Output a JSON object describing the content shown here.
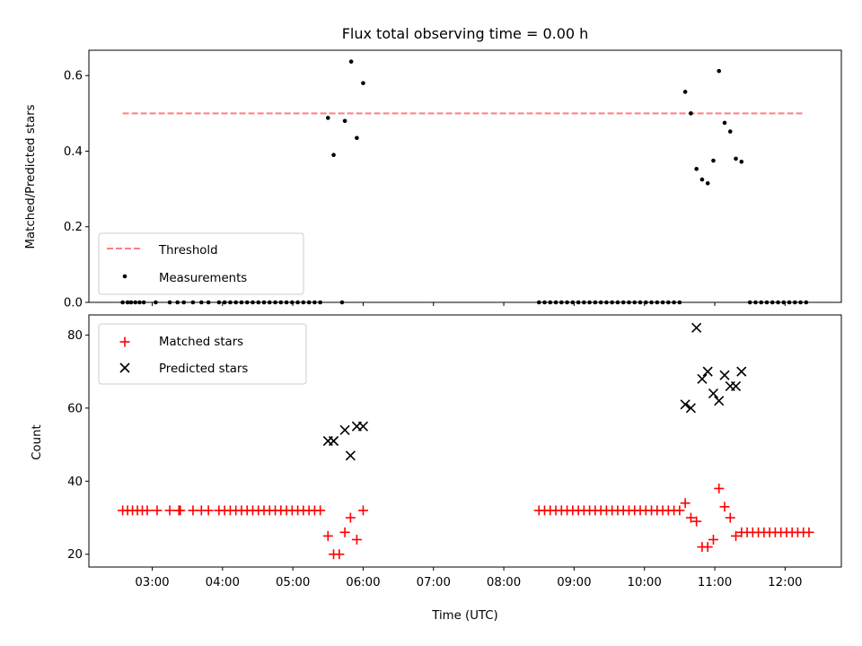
{
  "chart_data": [
    {
      "type": "scatter",
      "title": "Flux total observing time = 0.00 h",
      "xlabel": "",
      "ylabel": "Matched/Predicted stars",
      "ylim": [
        0,
        0.667
      ],
      "yticks": [
        0.0,
        0.2,
        0.4,
        0.6
      ],
      "ytick_labels": [
        "0.0",
        "0.2",
        "0.4",
        "0.6"
      ],
      "xlim_hours": [
        2.1,
        12.8
      ],
      "xtick_hours": [
        3,
        4,
        5,
        6,
        7,
        8,
        9,
        10,
        11,
        12
      ],
      "show_xtick_labels": false,
      "legend_position": "lower-left",
      "colors": {
        "threshold": "#ff7f7f",
        "measurements": "#000000"
      },
      "threshold": {
        "name": "Threshold",
        "value": 0.5,
        "x_start": 2.58,
        "x_end": 12.25
      },
      "series": [
        {
          "name": "Measurements",
          "points": [
            [
              2.58,
              0
            ],
            [
              2.65,
              0
            ],
            [
              2.7,
              0
            ],
            [
              2.76,
              0
            ],
            [
              2.82,
              0
            ],
            [
              2.88,
              0
            ],
            [
              3.05,
              0
            ],
            [
              3.25,
              0
            ],
            [
              3.36,
              0
            ],
            [
              3.45,
              0
            ],
            [
              3.58,
              0
            ],
            [
              3.7,
              0
            ],
            [
              3.8,
              0
            ],
            [
              3.95,
              0
            ],
            [
              4.03,
              0
            ],
            [
              4.11,
              0
            ],
            [
              4.19,
              0
            ],
            [
              4.27,
              0
            ],
            [
              4.35,
              0
            ],
            [
              4.43,
              0
            ],
            [
              4.51,
              0
            ],
            [
              4.59,
              0
            ],
            [
              4.67,
              0
            ],
            [
              4.75,
              0
            ],
            [
              4.83,
              0
            ],
            [
              4.91,
              0
            ],
            [
              4.99,
              0
            ],
            [
              5.07,
              0
            ],
            [
              5.15,
              0
            ],
            [
              5.23,
              0
            ],
            [
              5.31,
              0
            ],
            [
              5.39,
              0
            ],
            [
              5.7,
              0
            ],
            [
              5.5,
              0.488
            ],
            [
              5.58,
              0.39
            ],
            [
              5.74,
              0.48
            ],
            [
              5.83,
              0.637
            ],
            [
              5.91,
              0.435
            ],
            [
              6.0,
              0.58
            ],
            [
              8.5,
              0
            ],
            [
              8.58,
              0
            ],
            [
              8.66,
              0
            ],
            [
              8.74,
              0
            ],
            [
              8.82,
              0
            ],
            [
              8.9,
              0
            ],
            [
              8.98,
              0
            ],
            [
              9.06,
              0
            ],
            [
              9.14,
              0
            ],
            [
              9.22,
              0
            ],
            [
              9.3,
              0
            ],
            [
              9.38,
              0
            ],
            [
              9.46,
              0
            ],
            [
              9.54,
              0
            ],
            [
              9.62,
              0
            ],
            [
              9.7,
              0
            ],
            [
              9.78,
              0
            ],
            [
              9.86,
              0
            ],
            [
              9.94,
              0
            ],
            [
              10.02,
              0
            ],
            [
              10.1,
              0
            ],
            [
              10.18,
              0
            ],
            [
              10.26,
              0
            ],
            [
              10.34,
              0
            ],
            [
              10.42,
              0
            ],
            [
              10.5,
              0
            ],
            [
              11.5,
              0
            ],
            [
              11.58,
              0
            ],
            [
              11.66,
              0
            ],
            [
              11.74,
              0
            ],
            [
              11.82,
              0
            ],
            [
              11.9,
              0
            ],
            [
              11.98,
              0
            ],
            [
              12.06,
              0
            ],
            [
              12.14,
              0
            ],
            [
              12.22,
              0
            ],
            [
              12.3,
              0
            ],
            [
              10.58,
              0.557
            ],
            [
              10.66,
              0.5
            ],
            [
              10.74,
              0.353
            ],
            [
              10.82,
              0.325
            ],
            [
              10.9,
              0.315
            ],
            [
              10.98,
              0.375
            ],
            [
              11.06,
              0.612
            ],
            [
              11.14,
              0.475
            ],
            [
              11.22,
              0.452
            ],
            [
              11.3,
              0.38
            ],
            [
              11.38,
              0.372
            ]
          ]
        }
      ]
    },
    {
      "type": "scatter",
      "title": "",
      "xlabel": "Time (UTC)",
      "ylabel": "Count",
      "ylim": [
        16.5,
        85.5
      ],
      "yticks": [
        20,
        40,
        60,
        80
      ],
      "ytick_labels": [
        "20",
        "40",
        "60",
        "80"
      ],
      "xlim_hours": [
        2.1,
        12.8
      ],
      "xtick_hours": [
        3,
        4,
        5,
        6,
        7,
        8,
        9,
        10,
        11,
        12
      ],
      "xtick_labels": [
        "03:00",
        "04:00",
        "05:00",
        "06:00",
        "07:00",
        "08:00",
        "09:00",
        "10:00",
        "11:00",
        "12:00"
      ],
      "legend_position": "upper-left",
      "colors": {
        "matched": "#ff0000",
        "predicted": "#000000"
      },
      "series": [
        {
          "name": "Matched stars",
          "marker": "plus",
          "points": [
            [
              2.58,
              32
            ],
            [
              2.65,
              32
            ],
            [
              2.72,
              32
            ],
            [
              2.79,
              32
            ],
            [
              2.86,
              32
            ],
            [
              2.93,
              32
            ],
            [
              3.07,
              32
            ],
            [
              3.25,
              32
            ],
            [
              3.38,
              32
            ],
            [
              3.4,
              32
            ],
            [
              3.58,
              32
            ],
            [
              3.7,
              32
            ],
            [
              3.8,
              32
            ],
            [
              3.95,
              32
            ],
            [
              4.03,
              32
            ],
            [
              4.11,
              32
            ],
            [
              4.19,
              32
            ],
            [
              4.27,
              32
            ],
            [
              4.35,
              32
            ],
            [
              4.43,
              32
            ],
            [
              4.51,
              32
            ],
            [
              4.59,
              32
            ],
            [
              4.67,
              32
            ],
            [
              4.75,
              32
            ],
            [
              4.83,
              32
            ],
            [
              4.91,
              32
            ],
            [
              4.99,
              32
            ],
            [
              5.07,
              32
            ],
            [
              5.15,
              32
            ],
            [
              5.23,
              32
            ],
            [
              5.31,
              32
            ],
            [
              5.39,
              32
            ],
            [
              5.5,
              25
            ],
            [
              5.58,
              20
            ],
            [
              5.66,
              20
            ],
            [
              5.74,
              26
            ],
            [
              5.82,
              30
            ],
            [
              5.91,
              24
            ],
            [
              6.0,
              32
            ],
            [
              8.5,
              32
            ],
            [
              8.58,
              32
            ],
            [
              8.66,
              32
            ],
            [
              8.74,
              32
            ],
            [
              8.82,
              32
            ],
            [
              8.9,
              32
            ],
            [
              8.98,
              32
            ],
            [
              9.06,
              32
            ],
            [
              9.14,
              32
            ],
            [
              9.22,
              32
            ],
            [
              9.3,
              32
            ],
            [
              9.38,
              32
            ],
            [
              9.46,
              32
            ],
            [
              9.54,
              32
            ],
            [
              9.62,
              32
            ],
            [
              9.7,
              32
            ],
            [
              9.78,
              32
            ],
            [
              9.86,
              32
            ],
            [
              9.94,
              32
            ],
            [
              10.02,
              32
            ],
            [
              10.1,
              32
            ],
            [
              10.18,
              32
            ],
            [
              10.26,
              32
            ],
            [
              10.34,
              32
            ],
            [
              10.42,
              32
            ],
            [
              10.5,
              32
            ],
            [
              10.58,
              34
            ],
            [
              10.66,
              30
            ],
            [
              10.74,
              29
            ],
            [
              10.82,
              22
            ],
            [
              10.9,
              22
            ],
            [
              10.98,
              24
            ],
            [
              11.06,
              38
            ],
            [
              11.14,
              33
            ],
            [
              11.22,
              30
            ],
            [
              11.3,
              25
            ],
            [
              11.38,
              26
            ],
            [
              11.46,
              26
            ],
            [
              11.54,
              26
            ],
            [
              11.62,
              26
            ],
            [
              11.7,
              26
            ],
            [
              11.78,
              26
            ],
            [
              11.86,
              26
            ],
            [
              11.94,
              26
            ],
            [
              12.02,
              26
            ],
            [
              12.1,
              26
            ],
            [
              12.18,
              26
            ],
            [
              12.26,
              26
            ],
            [
              12.34,
              26
            ]
          ]
        },
        {
          "name": "Predicted stars",
          "marker": "x",
          "points": [
            [
              5.5,
              51
            ],
            [
              5.58,
              51
            ],
            [
              5.74,
              54
            ],
            [
              5.82,
              47
            ],
            [
              5.91,
              55
            ],
            [
              6.0,
              55
            ],
            [
              10.58,
              61
            ],
            [
              10.66,
              60
            ],
            [
              10.74,
              82
            ],
            [
              10.82,
              68
            ],
            [
              10.9,
              70
            ],
            [
              10.98,
              64
            ],
            [
              11.06,
              62
            ],
            [
              11.14,
              69
            ],
            [
              11.22,
              66
            ],
            [
              11.3,
              66
            ],
            [
              11.38,
              70
            ]
          ]
        }
      ]
    }
  ]
}
